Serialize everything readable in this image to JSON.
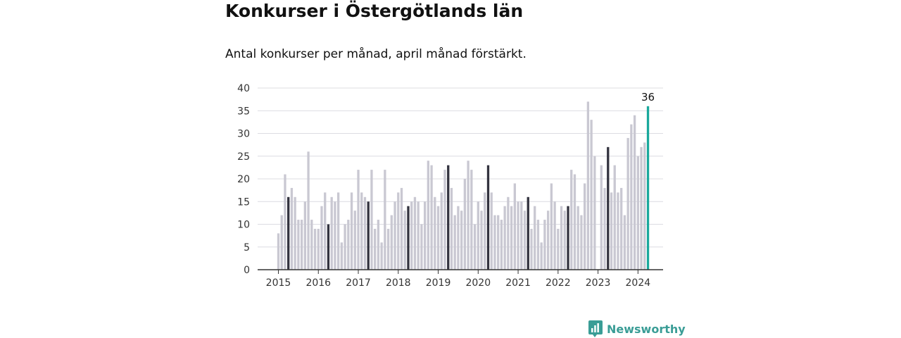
{
  "title": "Konkurser i Östergötlands län",
  "subtitle": "Antal konkurser per månad, april månad förstärkt.",
  "brand": "Newsworthy",
  "colors": {
    "bar": "#c9c8d2",
    "april": "#33333f",
    "latest": "#1aa99c",
    "grid": "#dcdce2",
    "axis": "#333333",
    "brand": "#3a9d96"
  },
  "chart_data": {
    "type": "bar",
    "x_start": "2015-01",
    "ylim": [
      0,
      40
    ],
    "yticks": [
      0,
      5,
      10,
      15,
      20,
      25,
      30,
      35,
      40
    ],
    "xticks": [
      "2015",
      "2016",
      "2017",
      "2018",
      "2019",
      "2020",
      "2021",
      "2022",
      "2023",
      "2024"
    ],
    "highlight_month": "april",
    "values": [
      8,
      12,
      21,
      16,
      18,
      16,
      11,
      11,
      15,
      26,
      11,
      9,
      9,
      14,
      17,
      10,
      16,
      15,
      17,
      6,
      10,
      11,
      17,
      13,
      22,
      17,
      16,
      15,
      22,
      9,
      11,
      6,
      22,
      9,
      12,
      15,
      17,
      18,
      13,
      14,
      15,
      16,
      15,
      10,
      15,
      24,
      23,
      16,
      14,
      17,
      22,
      23,
      18,
      12,
      14,
      13,
      20,
      24,
      22,
      10,
      15,
      13,
      17,
      23,
      17,
      12,
      12,
      11,
      14,
      16,
      14,
      19,
      15,
      15,
      13,
      16,
      9,
      14,
      11,
      6,
      11,
      13,
      19,
      15,
      9,
      14,
      13,
      14,
      22,
      21,
      14,
      12,
      19,
      37,
      33,
      25,
      0,
      23,
      18,
      27,
      17,
      23,
      17,
      18,
      12,
      29,
      32,
      34,
      25,
      27,
      28,
      36
    ],
    "latest_label": "36"
  }
}
